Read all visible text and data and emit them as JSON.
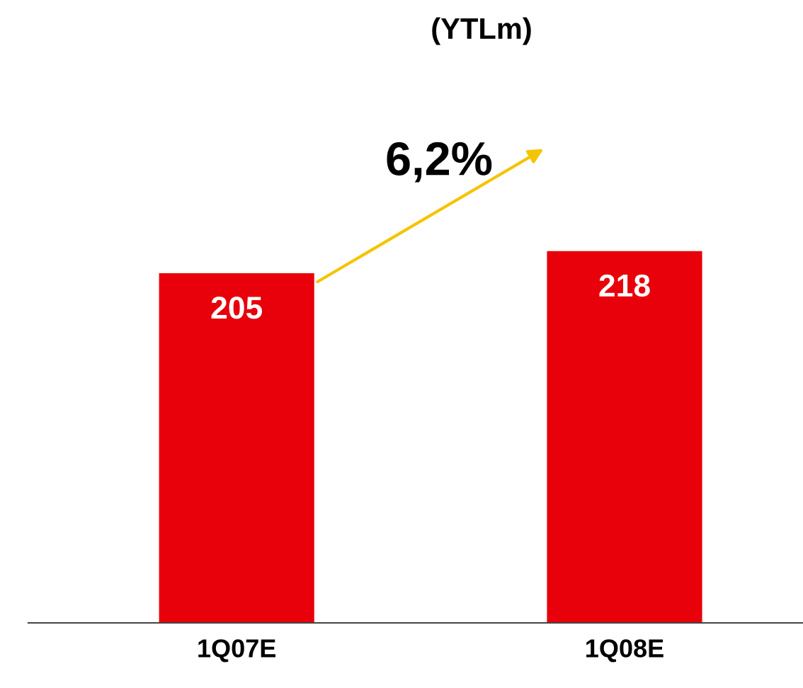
{
  "chart_data": {
    "type": "bar",
    "title": "(YTLm)",
    "categories": [
      "1Q07E",
      "1Q08E"
    ],
    "values": [
      205,
      218
    ],
    "color": "#e8000a",
    "data_labels": true,
    "grid": false,
    "annotations": [
      "6,2%"
    ]
  }
}
